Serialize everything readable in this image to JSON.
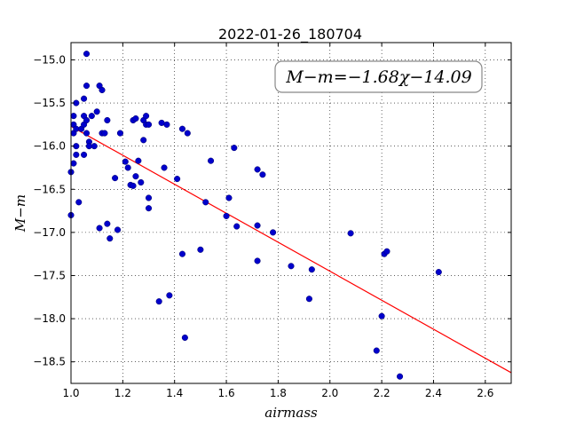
{
  "chart_data": {
    "type": "scatter",
    "title": "2022-01-26_180704",
    "xlabel": "airmass",
    "ylabel": "M−m",
    "xlim": [
      1.0,
      2.7
    ],
    "ylim": [
      -18.75,
      -14.8
    ],
    "grid": true,
    "xticks": [
      1.0,
      1.2,
      1.4,
      1.6,
      1.8,
      2.0,
      2.2,
      2.4,
      2.6
    ],
    "xtick_labels": [
      "1.0",
      "1.2",
      "1.4",
      "1.6",
      "1.8",
      "2.0",
      "2.2",
      "2.4",
      "2.6"
    ],
    "yticks": [
      -15.0,
      -15.5,
      -16.0,
      -16.5,
      -17.0,
      -17.5,
      -18.0,
      -18.5
    ],
    "ytick_labels": [
      "−15.0",
      "−15.5",
      "−16.0",
      "−16.5",
      "−17.0",
      "−17.5",
      "−18.0",
      "−18.5"
    ],
    "fit_label": "M−m=−1.68χ−14.09",
    "fit": {
      "slope": -1.68,
      "intercept": -14.09,
      "color": "#ff0000"
    },
    "point_color": "#0000cc",
    "points": [
      [
        1.0,
        -16.3
      ],
      [
        1.0,
        -16.8
      ],
      [
        1.01,
        -15.75
      ],
      [
        1.01,
        -15.85
      ],
      [
        1.01,
        -16.2
      ],
      [
        1.01,
        -15.65
      ],
      [
        1.02,
        -15.5
      ],
      [
        1.02,
        -15.8
      ],
      [
        1.02,
        -16.0
      ],
      [
        1.02,
        -16.1
      ],
      [
        1.03,
        -16.65
      ],
      [
        1.04,
        -15.8
      ],
      [
        1.05,
        -15.45
      ],
      [
        1.05,
        -15.65
      ],
      [
        1.05,
        -16.1
      ],
      [
        1.05,
        -15.75
      ],
      [
        1.06,
        -14.93
      ],
      [
        1.06,
        -15.3
      ],
      [
        1.06,
        -15.7
      ],
      [
        1.06,
        -15.85
      ],
      [
        1.07,
        -15.95
      ],
      [
        1.07,
        -16.0
      ],
      [
        1.08,
        -15.65
      ],
      [
        1.09,
        -16.0
      ],
      [
        1.1,
        -15.6
      ],
      [
        1.11,
        -15.3
      ],
      [
        1.12,
        -15.35
      ],
      [
        1.12,
        -15.85
      ],
      [
        1.13,
        -15.85
      ],
      [
        1.14,
        -15.7
      ],
      [
        1.11,
        -16.95
      ],
      [
        1.14,
        -16.9
      ],
      [
        1.15,
        -17.07
      ],
      [
        1.17,
        -16.37
      ],
      [
        1.18,
        -16.97
      ],
      [
        1.19,
        -15.85
      ],
      [
        1.21,
        -16.18
      ],
      [
        1.22,
        -16.25
      ],
      [
        1.23,
        -16.45
      ],
      [
        1.24,
        -15.7
      ],
      [
        1.24,
        -16.46
      ],
      [
        1.25,
        -15.68
      ],
      [
        1.25,
        -16.35
      ],
      [
        1.26,
        -16.17
      ],
      [
        1.27,
        -16.42
      ],
      [
        1.28,
        -15.93
      ],
      [
        1.28,
        -15.7
      ],
      [
        1.29,
        -15.65
      ],
      [
        1.29,
        -15.75
      ],
      [
        1.3,
        -15.75
      ],
      [
        1.3,
        -16.6
      ],
      [
        1.3,
        -16.72
      ],
      [
        1.34,
        -17.8
      ],
      [
        1.35,
        -15.73
      ],
      [
        1.36,
        -16.25
      ],
      [
        1.37,
        -15.75
      ],
      [
        1.38,
        -17.73
      ],
      [
        1.41,
        -16.38
      ],
      [
        1.43,
        -15.8
      ],
      [
        1.43,
        -17.25
      ],
      [
        1.44,
        -18.22
      ],
      [
        1.45,
        -15.85
      ],
      [
        1.5,
        -17.2
      ],
      [
        1.52,
        -16.65
      ],
      [
        1.54,
        -16.17
      ],
      [
        1.6,
        -16.81
      ],
      [
        1.61,
        -16.6
      ],
      [
        1.63,
        -16.02
      ],
      [
        1.64,
        -16.93
      ],
      [
        1.72,
        -16.27
      ],
      [
        1.72,
        -16.92
      ],
      [
        1.72,
        -17.33
      ],
      [
        1.74,
        -16.33
      ],
      [
        1.78,
        -17.0
      ],
      [
        1.85,
        -17.39
      ],
      [
        1.92,
        -17.77
      ],
      [
        1.93,
        -17.43
      ],
      [
        2.08,
        -17.01
      ],
      [
        2.18,
        -18.37
      ],
      [
        2.2,
        -17.97
      ],
      [
        2.21,
        -17.25
      ],
      [
        2.22,
        -17.22
      ],
      [
        2.27,
        -18.67
      ],
      [
        2.42,
        -17.46
      ]
    ]
  }
}
